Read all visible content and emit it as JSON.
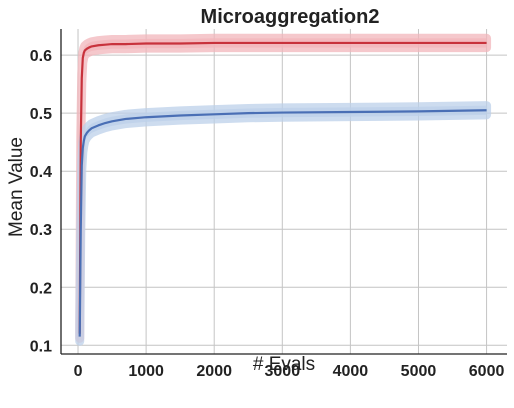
{
  "chart_data": {
    "type": "line",
    "title": "Microaggregation2",
    "xlabel": "# Evals",
    "ylabel": "Mean Value",
    "xlim": [
      -250,
      6300
    ],
    "ylim": [
      0.085,
      0.645
    ],
    "xticks": [
      0,
      1000,
      2000,
      3000,
      4000,
      5000,
      6000
    ],
    "yticks": [
      0.1,
      0.2,
      0.3,
      0.4,
      0.5,
      0.6
    ],
    "xtick_labels": [
      "0",
      "1000",
      "2000",
      "3000",
      "4000",
      "5000",
      "6000"
    ],
    "ytick_labels": [
      "0.1",
      "0.2",
      "0.3",
      "0.4",
      "0.5",
      "0.6"
    ],
    "grid": true,
    "series": [
      {
        "color": "#c8323c",
        "band_color": "#f2b6bb",
        "x": [
          25,
          40,
          55,
          70,
          85,
          100,
          130,
          160,
          200,
          300,
          400,
          500,
          700,
          1000,
          1500,
          2000,
          3000,
          4000,
          5000,
          6000
        ],
        "y": [
          0.12,
          0.45,
          0.56,
          0.595,
          0.604,
          0.608,
          0.611,
          0.613,
          0.615,
          0.617,
          0.618,
          0.619,
          0.619,
          0.62,
          0.62,
          0.621,
          0.621,
          0.621,
          0.621,
          0.621
        ],
        "band": 0.008
      },
      {
        "color": "#4a6fb5",
        "band_color": "#bcd0ea",
        "x": [
          25,
          40,
          55,
          70,
          85,
          100,
          130,
          160,
          200,
          300,
          400,
          500,
          700,
          1000,
          1500,
          2000,
          2500,
          3000,
          4000,
          5000,
          6000
        ],
        "y": [
          0.115,
          0.3,
          0.41,
          0.44,
          0.452,
          0.46,
          0.466,
          0.47,
          0.474,
          0.479,
          0.483,
          0.486,
          0.49,
          0.493,
          0.496,
          0.498,
          0.5,
          0.501,
          0.502,
          0.503,
          0.505
        ],
        "band": 0.008
      }
    ]
  }
}
